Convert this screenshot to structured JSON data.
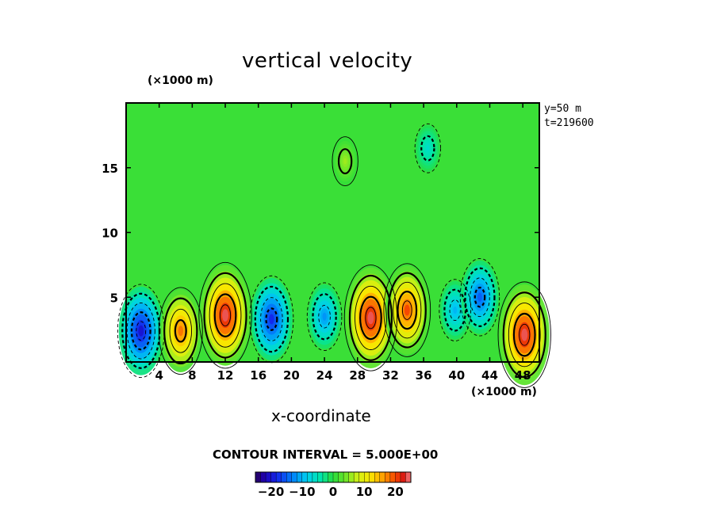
{
  "title": "vertical velocity",
  "y_unit": "(×1000 m)",
  "x_unit": "(×1000 m)",
  "meta": [
    "y=50 m",
    "t=219600"
  ],
  "contour_interval": "CONTOUR INTERVAL = 5.000E+00",
  "chart_data": {
    "type": "heatmap",
    "title": "vertical velocity",
    "xlabel": "x-coordinate",
    "ylabel": "",
    "x_unit": "(×1000 m)",
    "y_unit": "(×1000 m)",
    "xlim": [
      0,
      50
    ],
    "ylim": [
      0,
      20
    ],
    "x_ticks": [
      4,
      8,
      12,
      16,
      20,
      24,
      28,
      32,
      36,
      40,
      44,
      48
    ],
    "y_ticks": [
      5,
      10,
      15
    ],
    "contour_interval": 5.0,
    "colorbar": {
      "min": -25,
      "max": 25,
      "ticks": [
        -20,
        -10,
        0,
        10,
        20
      ],
      "tick_labels": [
        "−20",
        "−10",
        "0",
        "10",
        "20"
      ]
    },
    "features": [
      {
        "x": 1.8,
        "y": 2.4,
        "value": -20
      },
      {
        "x": 6.6,
        "y": 2.4,
        "value": 18
      },
      {
        "x": 12.0,
        "y": 3.6,
        "value": 24
      },
      {
        "x": 17.6,
        "y": 3.3,
        "value": -18
      },
      {
        "x": 24.0,
        "y": 3.5,
        "value": -12
      },
      {
        "x": 29.6,
        "y": 3.4,
        "value": 24
      },
      {
        "x": 34.0,
        "y": 4.0,
        "value": 20
      },
      {
        "x": 39.8,
        "y": 4.0,
        "value": -10
      },
      {
        "x": 42.8,
        "y": 5.0,
        "value": -15
      },
      {
        "x": 48.2,
        "y": 2.1,
        "value": 24
      },
      {
        "x": 26.5,
        "y": 15.5,
        "value": 6
      },
      {
        "x": 36.5,
        "y": 16.5,
        "value": -6
      }
    ]
  }
}
